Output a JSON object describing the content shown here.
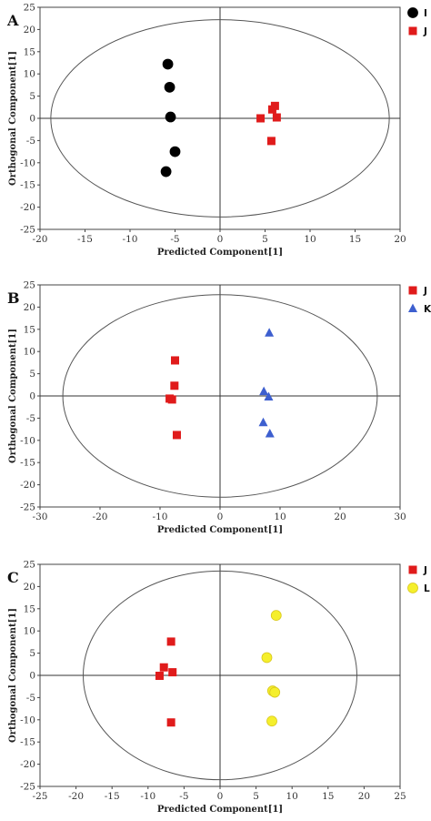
{
  "colors": {
    "I": "#000000",
    "J": "#e01b1b",
    "K": "#3d5fcf",
    "L": "#f5ef2c"
  },
  "chart_data": [
    {
      "type": "scatter",
      "panel_label": "A",
      "xlabel": "Predicted Component[1]",
      "ylabel": "Orthogonal Component[1]",
      "xlim": [
        -20,
        20
      ],
      "ylim": [
        -25,
        25
      ],
      "xticks": [
        "-20",
        "-15",
        "-10",
        "-5",
        "0",
        "5",
        "10",
        "15",
        "20"
      ],
      "yticks": [
        "-25",
        "-20",
        "-15",
        "-10",
        "-5",
        "0",
        "5",
        "10",
        "15",
        "20",
        "25"
      ],
      "ellipse": {
        "rx": 18.8,
        "ry": 22.2
      },
      "legend_position": "top-right",
      "series": [
        {
          "name": "I",
          "marker": "circle",
          "color": "#000000",
          "points": [
            [
              -5.8,
              12.2
            ],
            [
              -5.6,
              7.0
            ],
            [
              -5.5,
              0.3
            ],
            [
              -5.0,
              -7.5
            ],
            [
              -6.0,
              -12.0
            ]
          ]
        },
        {
          "name": "J",
          "marker": "square",
          "color": "#e01b1b",
          "points": [
            [
              4.5,
              0.0
            ],
            [
              5.8,
              2.0
            ],
            [
              6.1,
              2.8
            ],
            [
              6.3,
              0.2
            ],
            [
              5.7,
              -5.1
            ]
          ]
        }
      ]
    },
    {
      "type": "scatter",
      "panel_label": "B",
      "xlabel": "Predicted Component[1]",
      "ylabel": "Orthogonal Component[1]",
      "xlim": [
        -30,
        30
      ],
      "ylim": [
        -25,
        25
      ],
      "xticks": [
        "-30",
        "-20",
        "-10",
        "0",
        "10",
        "20",
        "30"
      ],
      "yticks": [
        "-25",
        "-20",
        "-15",
        "-10",
        "-5",
        "0",
        "5",
        "10",
        "15",
        "20",
        "25"
      ],
      "ellipse": {
        "rx": 26.2,
        "ry": 22.8
      },
      "legend_position": "top-right",
      "series": [
        {
          "name": "J",
          "marker": "square",
          "color": "#e01b1b",
          "points": [
            [
              -7.5,
              8.0
            ],
            [
              -7.6,
              2.3
            ],
            [
              -8.4,
              -0.6
            ],
            [
              -8.0,
              -0.8
            ],
            [
              -7.2,
              -8.8
            ]
          ]
        },
        {
          "name": "K",
          "marker": "triangle",
          "color": "#3d5fcf",
          "points": [
            [
              8.2,
              14.2
            ],
            [
              7.3,
              1.0
            ],
            [
              8.1,
              -0.2
            ],
            [
              7.2,
              -6.0
            ],
            [
              8.3,
              -8.5
            ]
          ]
        }
      ]
    },
    {
      "type": "scatter",
      "panel_label": "C",
      "xlabel": "Predicted Component[1]",
      "ylabel": "Orthogonal Component[1]",
      "xlim": [
        -25,
        25
      ],
      "ylim": [
        -25,
        25
      ],
      "xticks": [
        "-25",
        "-20",
        "-15",
        "-10",
        "-5",
        "0",
        "5",
        "10",
        "15",
        "20",
        "25"
      ],
      "yticks": [
        "-25",
        "-20",
        "-15",
        "-10",
        "-5",
        "0",
        "5",
        "10",
        "15",
        "20",
        "25"
      ],
      "ellipse": {
        "rx": 19.0,
        "ry": 23.5
      },
      "legend_position": "top-right",
      "series": [
        {
          "name": "J",
          "marker": "square",
          "color": "#e01b1b",
          "points": [
            [
              -6.8,
              7.6
            ],
            [
              -7.8,
              1.8
            ],
            [
              -8.4,
              -0.1
            ],
            [
              -6.6,
              0.7
            ],
            [
              -6.8,
              -10.6
            ]
          ]
        },
        {
          "name": "L",
          "marker": "circle",
          "color": "#f5ef2c",
          "points": [
            [
              7.8,
              13.5
            ],
            [
              6.5,
              4.0
            ],
            [
              7.3,
              -3.5
            ],
            [
              7.6,
              -3.8
            ],
            [
              7.2,
              -10.3
            ]
          ]
        }
      ]
    }
  ]
}
